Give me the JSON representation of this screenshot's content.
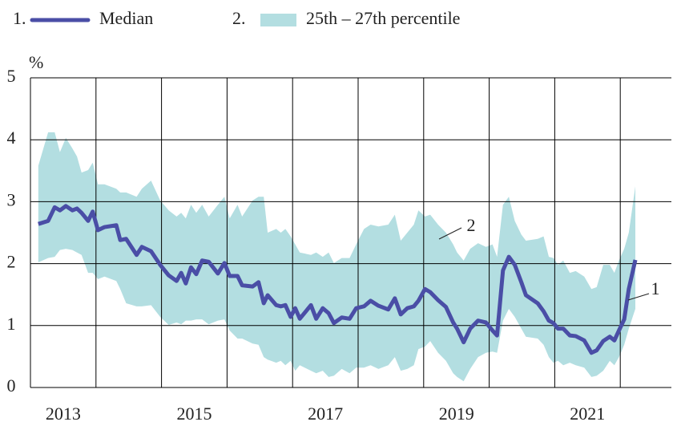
{
  "chart_data": {
    "type": "line",
    "y_label": "%",
    "x": [
      2013.12,
      2013.27,
      2013.37,
      2013.45,
      2013.54,
      2013.64,
      2013.71,
      2013.78,
      2013.88,
      2013.95,
      2014.03,
      2014.13,
      2014.31,
      2014.37,
      2014.46,
      2014.62,
      2014.7,
      2014.84,
      2014.98,
      2015.11,
      2015.23,
      2015.3,
      2015.37,
      2015.45,
      2015.53,
      2015.62,
      2015.72,
      2015.86,
      2015.96,
      2016.04,
      2016.16,
      2016.23,
      2016.39,
      2016.48,
      2016.56,
      2016.62,
      2016.75,
      2016.82,
      2016.89,
      2016.97,
      2017.04,
      2017.11,
      2017.28,
      2017.36,
      2017.46,
      2017.55,
      2017.63,
      2017.75,
      2017.87,
      2017.97,
      2018.09,
      2018.19,
      2018.31,
      2018.46,
      2018.56,
      2018.65,
      2018.75,
      2018.85,
      2018.92,
      2019.02,
      2019.1,
      2019.22,
      2019.34,
      2019.45,
      2019.51,
      2019.61,
      2019.71,
      2019.83,
      2019.95,
      2020.05,
      2020.12,
      2020.21,
      2020.3,
      2020.39,
      2020.49,
      2020.56,
      2020.74,
      2020.83,
      2020.91,
      2020.98,
      2021.05,
      2021.13,
      2021.23,
      2021.32,
      2021.45,
      2021.56,
      2021.64,
      2021.74,
      2021.84,
      2021.91,
      2021.98,
      2022.06,
      2022.13,
      2022.23
    ],
    "series": [
      {
        "name": "Median",
        "key": "1.",
        "color": "#4a4ea6",
        "values": [
          2.64,
          2.69,
          2.91,
          2.86,
          2.93,
          2.86,
          2.89,
          2.82,
          2.69,
          2.84,
          2.54,
          2.59,
          2.62,
          2.38,
          2.4,
          2.14,
          2.27,
          2.2,
          1.98,
          1.81,
          1.72,
          1.85,
          1.68,
          1.94,
          1.83,
          2.05,
          2.03,
          1.84,
          2.01,
          1.8,
          1.8,
          1.65,
          1.63,
          1.7,
          1.36,
          1.49,
          1.33,
          1.31,
          1.33,
          1.14,
          1.28,
          1.11,
          1.33,
          1.11,
          1.28,
          1.2,
          1.04,
          1.13,
          1.11,
          1.28,
          1.31,
          1.4,
          1.32,
          1.26,
          1.44,
          1.18,
          1.28,
          1.31,
          1.4,
          1.59,
          1.54,
          1.41,
          1.3,
          1.05,
          0.95,
          0.73,
          0.95,
          1.08,
          1.05,
          0.92,
          0.84,
          1.89,
          2.11,
          1.98,
          1.7,
          1.49,
          1.36,
          1.23,
          1.08,
          1.04,
          0.95,
          0.95,
          0.84,
          0.83,
          0.76,
          0.56,
          0.6,
          0.75,
          0.82,
          0.76,
          0.92,
          1.1,
          1.59,
          2.06
        ]
      }
    ],
    "band": {
      "name": "25th – 27th percentile",
      "key": "2.",
      "color": "#b3dee1",
      "upper": [
        3.58,
        4.12,
        4.12,
        3.8,
        4.03,
        3.86,
        3.73,
        3.47,
        3.51,
        3.63,
        3.28,
        3.28,
        3.21,
        3.15,
        3.15,
        3.08,
        3.21,
        3.34,
        3.02,
        2.86,
        2.76,
        2.82,
        2.73,
        2.95,
        2.82,
        2.95,
        2.76,
        2.95,
        3.08,
        2.73,
        2.95,
        2.76,
        3.02,
        3.08,
        3.08,
        2.5,
        2.56,
        2.5,
        2.56,
        2.44,
        2.31,
        2.18,
        2.14,
        2.18,
        2.11,
        2.18,
        2.01,
        2.09,
        2.09,
        2.31,
        2.56,
        2.63,
        2.6,
        2.63,
        2.79,
        2.37,
        2.5,
        2.63,
        2.86,
        2.76,
        2.79,
        2.63,
        2.5,
        2.31,
        2.18,
        2.05,
        2.24,
        2.33,
        2.27,
        2.31,
        2.11,
        2.95,
        3.08,
        2.69,
        2.47,
        2.37,
        2.4,
        2.44,
        2.11,
        2.09,
        1.98,
        2.05,
        1.85,
        1.88,
        1.79,
        1.59,
        1.62,
        1.98,
        1.98,
        1.85,
        2.05,
        2.24,
        2.5,
        3.25
      ],
      "lower": [
        2.02,
        2.09,
        2.11,
        2.22,
        2.24,
        2.22,
        2.18,
        2.14,
        1.85,
        1.85,
        1.75,
        1.79,
        1.72,
        1.59,
        1.36,
        1.31,
        1.31,
        1.33,
        1.14,
        1.01,
        1.05,
        1.02,
        1.08,
        1.08,
        1.1,
        1.1,
        1.02,
        1.08,
        1.1,
        0.92,
        0.79,
        0.79,
        0.71,
        0.69,
        0.49,
        0.45,
        0.4,
        0.43,
        0.36,
        0.43,
        0.27,
        0.36,
        0.27,
        0.23,
        0.27,
        0.17,
        0.19,
        0.3,
        0.23,
        0.32,
        0.32,
        0.36,
        0.3,
        0.36,
        0.49,
        0.27,
        0.3,
        0.36,
        0.62,
        0.66,
        0.75,
        0.56,
        0.43,
        0.23,
        0.17,
        0.1,
        0.3,
        0.49,
        0.56,
        0.58,
        0.56,
        1.08,
        1.27,
        1.14,
        0.95,
        0.82,
        0.79,
        0.69,
        0.49,
        0.4,
        0.43,
        0.36,
        0.4,
        0.36,
        0.32,
        0.17,
        0.19,
        0.27,
        0.43,
        0.36,
        0.49,
        0.69,
        0.95,
        1.27
      ]
    },
    "annotations": [
      "1",
      "2"
    ],
    "xlim": [
      2013,
      2022.78
    ],
    "xticks": [
      {
        "value": 2013.5,
        "label": "2013"
      },
      {
        "value": 2015.5,
        "label": "2015"
      },
      {
        "value": 2017.5,
        "label": "2017"
      },
      {
        "value": 2019.5,
        "label": "2019"
      },
      {
        "value": 2021.5,
        "label": "2021"
      }
    ],
    "xgrid": [
      2014,
      2015,
      2016,
      2017,
      2018,
      2019,
      2020,
      2021,
      2022
    ],
    "ylim": [
      0,
      5
    ],
    "yticks": [
      0,
      1,
      2,
      3,
      4,
      5
    ],
    "grid": true
  }
}
